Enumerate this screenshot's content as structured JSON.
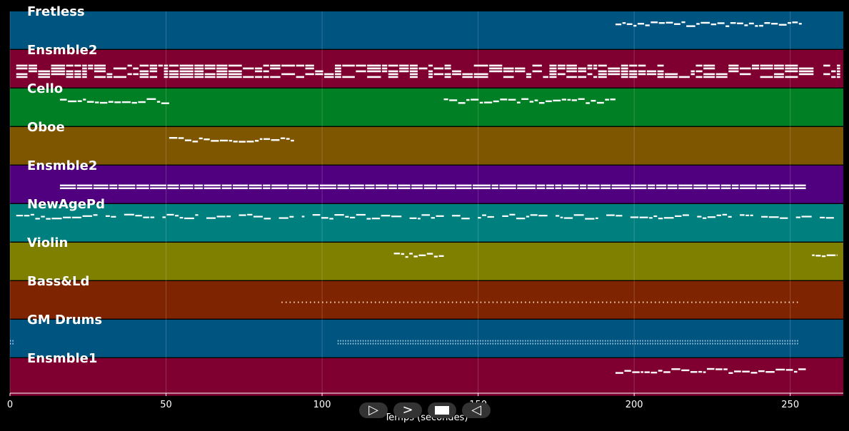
{
  "controls": {
    "play": {
      "icon": "play-outline-icon",
      "glyph": "▷"
    },
    "forward": {
      "icon": "chevron-right-icon",
      "glyph": ">"
    },
    "stop": {
      "icon": "stop-icon"
    },
    "back": {
      "icon": "play-reverse-outline-icon",
      "glyph": "◁"
    }
  },
  "chart_data": {
    "type": "piano-roll",
    "xlabel": "Temps (secondes)",
    "xlim": [
      0,
      267
    ],
    "xticks": [
      0,
      50,
      100,
      150,
      200,
      250
    ],
    "xtick_labels": [
      "0",
      "50",
      "100",
      "150",
      "200",
      "250"
    ],
    "grid": true,
    "note_color": "#ffffff",
    "background": "#000000",
    "tracks": [
      {
        "name": "Fretless",
        "color": "#005480",
        "activity": [
          [
            194,
            254
          ]
        ],
        "style": "melody"
      },
      {
        "name": "Ensmble2",
        "color": "#7f0030",
        "activity": [
          [
            2,
            266
          ]
        ],
        "style": "chords"
      },
      {
        "name": "Cello",
        "color": "#007f24",
        "activity": [
          [
            16,
            51
          ],
          [
            139,
            194
          ]
        ],
        "style": "melody"
      },
      {
        "name": "Oboe",
        "color": "#7f5600",
        "activity": [
          [
            51,
            91
          ]
        ],
        "style": "melody"
      },
      {
        "name": "Ensmble2",
        "color": "#50007f",
        "activity": [
          [
            16,
            255
          ]
        ],
        "style": "pad"
      },
      {
        "name": "NewAgePd",
        "color": "#007f7f",
        "activity": [
          [
            2,
            264
          ]
        ],
        "style": "phrases"
      },
      {
        "name": "Violin",
        "color": "#7f7f00",
        "activity": [
          [
            123,
            139
          ],
          [
            257,
            265
          ]
        ],
        "style": "melody"
      },
      {
        "name": "Bass&Ld",
        "color": "#7f2400",
        "activity": [
          [
            87,
            253
          ]
        ],
        "style": "dots"
      },
      {
        "name": "GM Drums",
        "color": "#005480",
        "activity": [
          [
            0,
            1
          ],
          [
            105,
            253
          ]
        ],
        "style": "drums"
      },
      {
        "name": "Ensmble1",
        "color": "#7f0030",
        "activity": [
          [
            194,
            255
          ]
        ],
        "style": "melody"
      }
    ]
  }
}
